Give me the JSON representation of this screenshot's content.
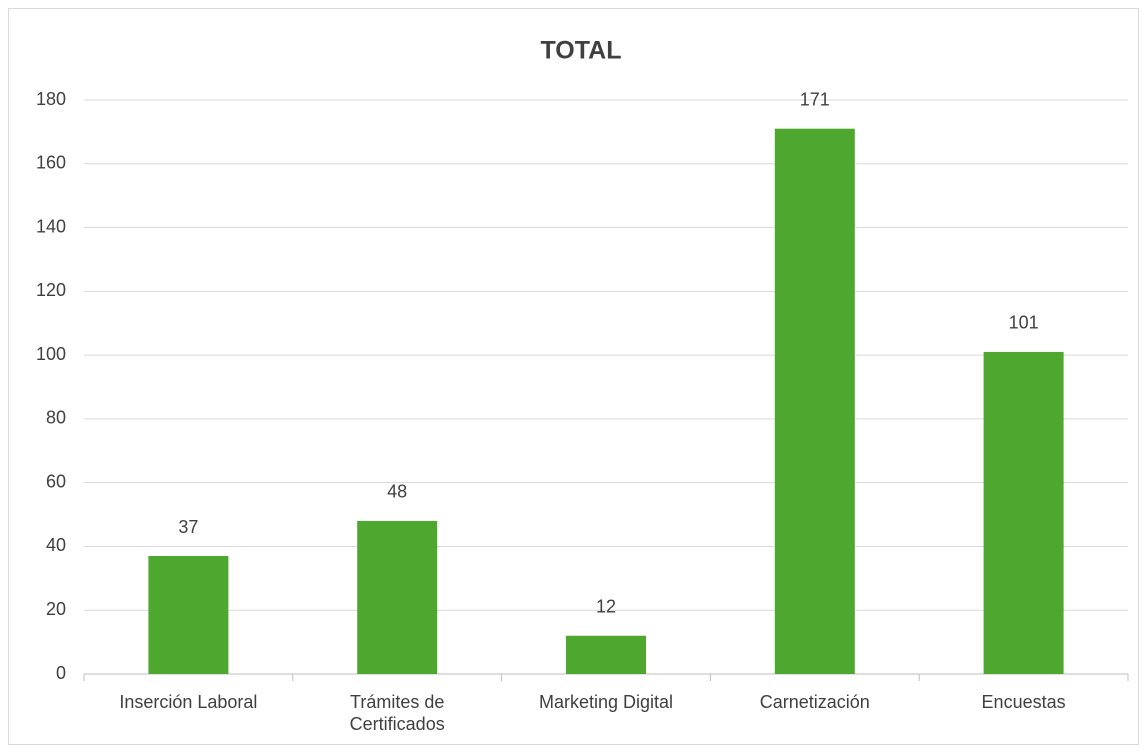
{
  "chart_data": {
    "type": "bar",
    "title": "TOTAL",
    "categories": [
      "Inserción Laboral",
      "Trámites de Certificados",
      "Marketing Digital",
      "Carnetización",
      "Encuestas"
    ],
    "values": [
      37,
      48,
      12,
      171,
      101
    ],
    "color": "#4ea72e",
    "ylim": [
      0,
      180
    ],
    "yticks": [
      0,
      20,
      40,
      60,
      80,
      100,
      120,
      140,
      160,
      180
    ],
    "grid": true
  }
}
